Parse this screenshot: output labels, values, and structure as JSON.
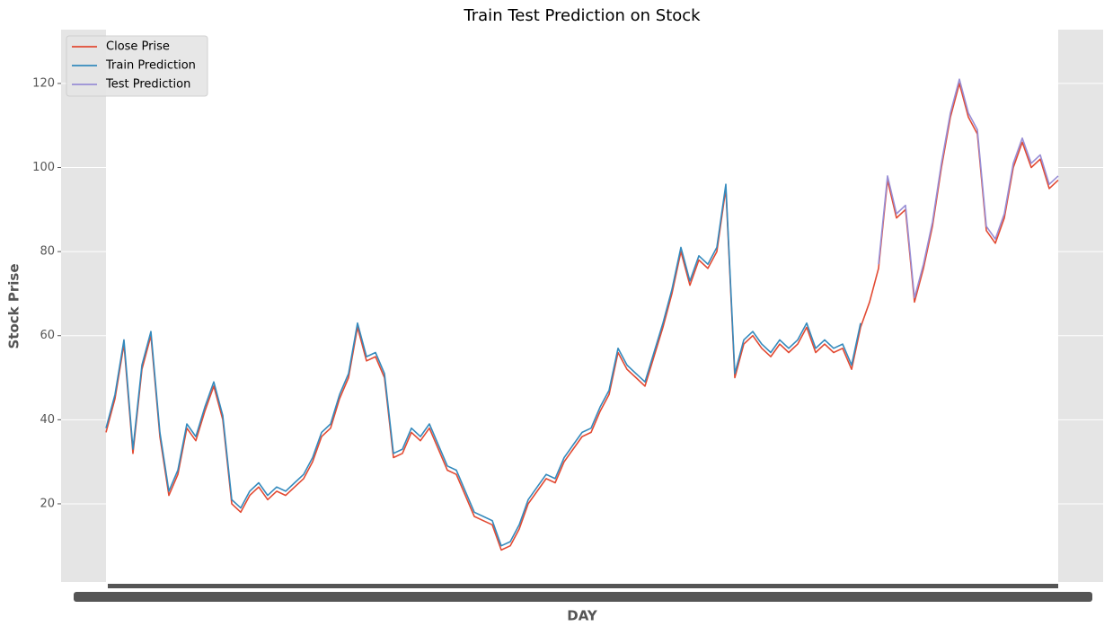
{
  "chart_data": {
    "type": "line",
    "title": "Train Test Prediction on Stock",
    "xlabel": "DAY",
    "ylabel": "Stock Prise",
    "x": [
      0,
      1,
      2,
      3,
      4,
      5,
      6,
      7,
      8,
      9,
      10,
      11,
      12,
      13,
      14,
      15,
      16,
      17,
      18,
      19,
      20,
      21,
      22,
      23,
      24,
      25,
      26,
      27,
      28,
      29,
      30,
      31,
      32,
      33,
      34,
      35,
      36,
      37,
      38,
      39,
      40,
      41,
      42,
      43,
      44,
      45,
      46,
      47,
      48,
      49,
      50,
      51,
      52,
      53,
      54,
      55,
      56,
      57,
      58,
      59,
      60,
      61,
      62,
      63,
      64,
      65,
      66,
      67,
      68,
      69,
      70,
      71,
      72,
      73,
      74,
      75,
      76,
      77,
      78,
      79,
      80,
      81,
      82,
      83,
      84,
      85,
      86,
      87,
      88,
      89,
      90,
      91,
      92,
      93,
      94,
      95,
      96,
      97,
      98,
      99,
      100,
      101,
      102,
      103,
      104,
      105,
      106
    ],
    "xlim": [
      -5,
      111
    ],
    "ylim": [
      1.4,
      132.8
    ],
    "yticks": [
      20,
      40,
      60,
      80,
      100,
      120
    ],
    "grid": true,
    "legend": "upper left",
    "series": [
      {
        "name": "Close Prise",
        "color": "#e24a33",
        "values": [
          37,
          45,
          58,
          32,
          52,
          60,
          36,
          22,
          27,
          38,
          35,
          42,
          48,
          40,
          20,
          18,
          22,
          24,
          21,
          23,
          22,
          24,
          26,
          30,
          36,
          38,
          45,
          50,
          62,
          54,
          55,
          50,
          31,
          32,
          37,
          35,
          38,
          33,
          28,
          27,
          22,
          17,
          16,
          15,
          9,
          10,
          14,
          20,
          23,
          26,
          25,
          30,
          33,
          36,
          37,
          42,
          46,
          56,
          52,
          50,
          48,
          55,
          62,
          70,
          80,
          72,
          78,
          76,
          80,
          95,
          50,
          58,
          60,
          57,
          55,
          58,
          56,
          58,
          62,
          56,
          58,
          56,
          57,
          52,
          62,
          68,
          76,
          97,
          88,
          90,
          68,
          76,
          86,
          100,
          112,
          120,
          112,
          108,
          85,
          82,
          88,
          100,
          106,
          100,
          102,
          95,
          97
        ]
      },
      {
        "name": "Train Prediction",
        "color": "#348abd",
        "values": [
          38,
          46,
          59,
          33,
          53,
          61,
          37,
          23,
          28,
          39,
          36,
          43,
          49,
          41,
          21,
          19,
          23,
          25,
          22,
          24,
          23,
          25,
          27,
          31,
          37,
          39,
          46,
          51,
          63,
          55,
          56,
          51,
          32,
          33,
          38,
          36,
          39,
          34,
          29,
          28,
          23,
          18,
          17,
          16,
          10,
          11,
          15,
          21,
          24,
          27,
          26,
          31,
          34,
          37,
          38,
          43,
          47,
          57,
          53,
          51,
          49,
          56,
          63,
          71,
          81,
          73,
          79,
          77,
          81,
          96,
          51,
          59,
          61,
          58,
          56,
          59,
          57,
          59,
          63,
          57,
          59,
          57,
          58,
          53,
          63,
          null,
          null,
          null,
          null,
          null,
          null,
          null,
          null,
          null,
          null,
          null,
          null,
          null,
          null,
          null,
          null,
          null,
          null,
          null,
          null,
          null,
          null
        ]
      },
      {
        "name": "Test Prediction",
        "color": "#988ed5",
        "values": [
          null,
          null,
          null,
          null,
          null,
          null,
          null,
          null,
          null,
          null,
          null,
          null,
          null,
          null,
          null,
          null,
          null,
          null,
          null,
          null,
          null,
          null,
          null,
          null,
          null,
          null,
          null,
          null,
          null,
          null,
          null,
          null,
          null,
          null,
          null,
          null,
          null,
          null,
          null,
          null,
          null,
          null,
          null,
          null,
          null,
          null,
          null,
          null,
          null,
          null,
          null,
          null,
          null,
          null,
          null,
          null,
          null,
          null,
          null,
          null,
          null,
          null,
          null,
          null,
          null,
          null,
          null,
          null,
          null,
          null,
          null,
          null,
          null,
          null,
          null,
          null,
          null,
          null,
          null,
          null,
          null,
          null,
          null,
          null,
          null,
          null,
          77,
          98,
          89,
          91,
          69,
          77,
          87,
          101,
          113,
          121,
          113,
          109,
          86,
          83,
          89,
          101,
          107,
          101,
          103,
          96,
          98
        ]
      }
    ]
  }
}
